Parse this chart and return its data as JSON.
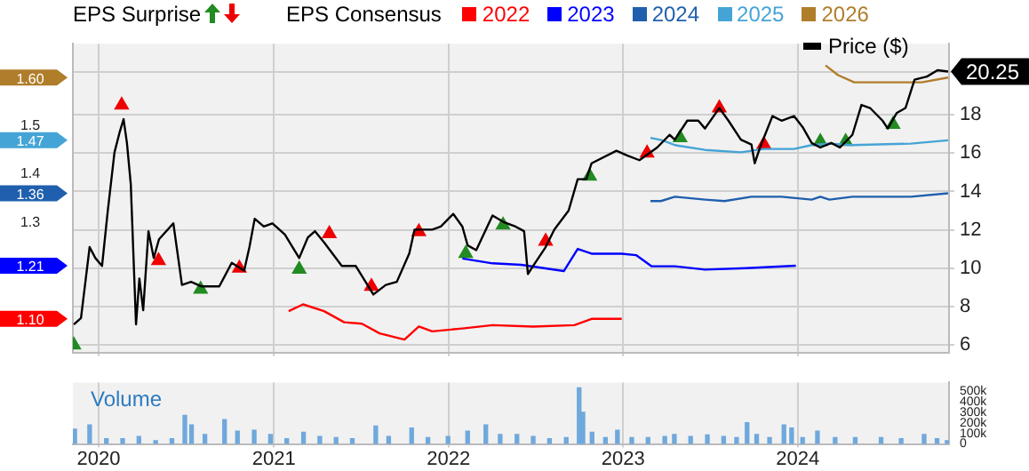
{
  "chart_data": [
    {
      "type": "line",
      "annotations": [
        "EPS Surprise"
      ],
      "legend_title": "EPS Consensus",
      "legend": "top",
      "grid": true,
      "tick_labels": "y",
      "marker": "none",
      "xlim": [
        "2019-11-08",
        "2024-11-12"
      ],
      "xticks": [
        "2020",
        "2021",
        "2022",
        "2023",
        "2024"
      ],
      "ylim": [
        5.6,
        21.7
      ],
      "yticks": [
        6,
        8,
        10,
        12,
        14,
        16,
        18,
        {
          "value": 20.25,
          "label": "20.25"
        }
      ],
      "y2lim": [
        1.03,
        1.67
      ],
      "y2ticks": [
        {
          "value": 1.1,
          "label": "1.10"
        },
        1.21,
        1.3,
        1.36,
        1.4,
        1.47,
        1.5,
        {
          "value": 1.6,
          "label": "1.60"
        }
      ],
      "series": [
        {
          "name": "Price ($)",
          "color": "#000000",
          "x": [
            "2019-11-10",
            "2019-11-25",
            "2019-12-13",
            "2019-12-25",
            "2020-01-08",
            "2020-01-20",
            "2020-02-03",
            "2020-02-14",
            "2020-02-22",
            "2020-02-29",
            "2020-03-08",
            "2020-03-19",
            "2020-03-26",
            "2020-04-03",
            "2020-04-14",
            "2020-04-25",
            "2020-05-06",
            "2020-06-05",
            "2020-06-23",
            "2020-07-12",
            "2020-08-03",
            "2020-09-09",
            "2020-10-05",
            "2020-10-31",
            "2020-11-11",
            "2020-11-22",
            "2020-12-11",
            "2020-12-29",
            "2021-01-24",
            "2021-02-23",
            "2021-03-13",
            "2021-03-28",
            "2021-04-16",
            "2021-05-23",
            "2021-06-21",
            "2021-07-28",
            "2021-08-23",
            "2021-09-15",
            "2021-10-11",
            "2021-10-22",
            "2021-11-28",
            "2021-12-16",
            "2022-01-11",
            "2022-01-30",
            "2022-02-10",
            "2022-02-28",
            "2022-04-03",
            "2022-04-25",
            "2022-05-21",
            "2022-06-08",
            "2022-06-16",
            "2022-06-27",
            "2022-07-23",
            "2022-08-10",
            "2022-09-09",
            "2022-09-28",
            "2022-10-16",
            "2022-10-27",
            "2022-12-18",
            "2023-01-09",
            "2023-02-04",
            "2023-03-13",
            "2023-04-08",
            "2023-04-19",
            "2023-05-15",
            "2023-06-07",
            "2023-06-21",
            "2023-07-21",
            "2023-08-09",
            "2023-09-04",
            "2023-09-26",
            "2023-10-03",
            "2023-10-14",
            "2023-11-09",
            "2023-11-28",
            "2023-12-24",
            "2024-01-11",
            "2024-01-30",
            "2024-02-17",
            "2024-03-11",
            "2024-03-29",
            "2024-04-24",
            "2024-05-13",
            "2024-05-31",
            "2024-06-26",
            "2024-07-07",
            "2024-07-26",
            "2024-08-13",
            "2024-09-01",
            "2024-09-27",
            "2024-10-19",
            "2024-11-10"
          ],
          "values": [
            7.07,
            7.4,
            11.1,
            10.53,
            10.12,
            13.0,
            16.04,
            17.11,
            17.77,
            16.53,
            14.4,
            7.07,
            9.46,
            7.81,
            11.93,
            10.53,
            11.51,
            12.34,
            9.13,
            9.29,
            9.05,
            9.05,
            10.28,
            9.87,
            11.1,
            12.58,
            12.17,
            12.34,
            11.76,
            10.53,
            11.6,
            11.93,
            11.35,
            10.12,
            10.12,
            8.63,
            9.13,
            9.29,
            10.77,
            12.01,
            12.01,
            12.17,
            12.83,
            12.17,
            11.19,
            10.94,
            12.75,
            12.42,
            12.17,
            11.93,
            9.7,
            10.12,
            11.1,
            12.01,
            13.0,
            14.64,
            14.64,
            15.47,
            16.12,
            15.88,
            15.63,
            16.29,
            16.95,
            16.7,
            17.69,
            17.69,
            17.28,
            18.35,
            17.69,
            16.7,
            16.45,
            15.47,
            16.29,
            17.93,
            17.69,
            17.93,
            17.36,
            16.53,
            16.29,
            16.53,
            16.29,
            16.95,
            18.51,
            18.35,
            17.69,
            17.28,
            18.1,
            18.35,
            19.83,
            19.99,
            20.32,
            20.25
          ]
        },
        {
          "name": "2022",
          "color": "#ff0000",
          "axis": "y2",
          "x": [
            "2021-02-01",
            "2021-03-03",
            "2021-04-16",
            "2021-05-28",
            "2021-07-04",
            "2021-08-10",
            "2021-10-01",
            "2021-10-31",
            "2021-11-28",
            "2022-01-30",
            "2022-04-03",
            "2022-06-27",
            "2022-09-21",
            "2022-10-27",
            "2022-12-29"
          ],
          "values": [
            1.116,
            1.13,
            1.116,
            1.093,
            1.09,
            1.07,
            1.057,
            1.084,
            1.074,
            1.08,
            1.087,
            1.084,
            1.087,
            1.1,
            1.1
          ]
        },
        {
          "name": "2023",
          "color": "#0000ff",
          "axis": "y2",
          "x": [
            "2022-01-30",
            "2022-04-03",
            "2022-06-02",
            "2022-08-30",
            "2022-09-28",
            "2022-10-27",
            "2022-12-29",
            "2023-01-28",
            "2023-03-01",
            "2023-04-19",
            "2023-06-21",
            "2023-09-15",
            "2023-12-28"
          ],
          "values": [
            1.225,
            1.215,
            1.212,
            1.199,
            1.245,
            1.235,
            1.235,
            1.232,
            1.209,
            1.209,
            1.202,
            1.205,
            1.21
          ]
        },
        {
          "name": "2024",
          "color": "#1f5fad",
          "axis": "y2",
          "x": [
            "2023-02-27",
            "2023-03-21",
            "2023-04-19",
            "2023-06-21",
            "2023-08-01",
            "2023-09-26",
            "2023-11-28",
            "2024-01-30",
            "2024-02-17",
            "2024-03-07",
            "2024-04-24",
            "2024-08-24",
            "2024-11-10"
          ],
          "values": [
            1.344,
            1.344,
            1.353,
            1.347,
            1.344,
            1.353,
            1.353,
            1.347,
            1.353,
            1.347,
            1.353,
            1.353,
            1.36
          ]
        },
        {
          "name": "2025",
          "color": "#45a4d6",
          "axis": "y2",
          "x": [
            "2023-02-27",
            "2023-03-24",
            "2023-04-19",
            "2023-06-21",
            "2023-09-04",
            "2023-10-22",
            "2023-12-24",
            "2024-01-30",
            "2024-03-07",
            "2024-04-24",
            "2024-08-24",
            "2024-11-10"
          ],
          "values": [
            1.475,
            1.47,
            1.46,
            1.45,
            1.445,
            1.452,
            1.452,
            1.46,
            1.463,
            1.46,
            1.463,
            1.47
          ]
        },
        {
          "name": "2026",
          "color": "#b07d2b",
          "axis": "y2",
          "x": [
            "2024-02-28",
            "2024-03-25",
            "2024-04-28",
            "2024-07-07",
            "2024-09-16",
            "2024-11-10"
          ],
          "values": [
            1.625,
            1.605,
            1.59,
            1.59,
            1.59,
            1.6
          ]
        },
        {
          "type": "scatter",
          "marker": "triangle",
          "color": "#228b22",
          "x": [
            "2019-11-10",
            "2020-08-01",
            "2021-02-23",
            "2022-02-06",
            "2022-04-25",
            "2022-10-23",
            "2023-04-30",
            "2024-02-17",
            "2024-04-10",
            "2024-07-18"
          ],
          "values": [
            6.0,
            8.9,
            9.95,
            10.77,
            12.25,
            14.8,
            16.8,
            16.6,
            16.6,
            17.5
          ]
        },
        {
          "type": "scatter",
          "marker": "triangle",
          "color": "#ee0000",
          "x": [
            "2020-02-18",
            "2020-05-05",
            "2020-10-21",
            "2021-04-27",
            "2021-07-24",
            "2021-10-31",
            "2022-07-23",
            "2023-02-20",
            "2023-07-21",
            "2023-10-22"
          ],
          "values": [
            18.5,
            10.4,
            10.0,
            11.8,
            9.05,
            11.9,
            11.4,
            16.0,
            18.35,
            16.45
          ]
        }
      ]
    },
    {
      "type": "bar",
      "ylabel": "Volume",
      "grid": "x",
      "xlim": [
        "2019-11-08",
        "2024-11-12"
      ],
      "xticks": [
        "2020",
        "2021",
        "2022",
        "2023",
        "2024"
      ],
      "ylim": [
        0,
        580000
      ],
      "yticks": [
        0,
        {
          "value": 100000,
          "label": "100k"
        },
        {
          "value": 200000,
          "label": "200k"
        },
        {
          "value": 300000,
          "label": "300k"
        },
        {
          "value": 400000,
          "label": "400k"
        },
        {
          "value": 500000,
          "label": "500k"
        }
      ],
      "color": "#6fa8dc",
      "x": [
        "2019-11-12",
        "2019-12-13",
        "2020-01-17",
        "2020-02-20",
        "2020-03-25",
        "2020-04-29",
        "2020-06-02",
        "2020-06-29",
        "2020-07-13",
        "2020-08-10",
        "2020-09-20",
        "2020-10-17",
        "2020-11-21",
        "2020-12-25",
        "2021-01-28",
        "2021-03-04",
        "2021-04-07",
        "2021-05-11",
        "2021-06-14",
        "2021-08-02",
        "2021-08-29",
        "2021-10-16",
        "2021-11-19",
        "2021-12-31",
        "2022-02-10",
        "2022-03-20",
        "2022-04-19",
        "2022-05-24",
        "2022-06-27",
        "2022-07-31",
        "2022-09-04",
        "2022-10-01",
        "2022-10-09",
        "2022-10-28",
        "2022-11-25",
        "2022-12-20",
        "2023-01-19",
        "2023-02-22",
        "2023-03-29",
        "2023-04-18",
        "2023-05-22",
        "2023-06-26",
        "2023-07-30",
        "2023-08-26",
        "2023-09-17",
        "2023-10-07",
        "2023-11-03",
        "2023-12-03",
        "2023-12-19",
        "2024-01-11",
        "2024-02-11",
        "2024-03-19",
        "2024-04-30",
        "2024-06-23",
        "2024-08-04",
        "2024-09-21",
        "2024-10-18",
        "2024-11-08"
      ],
      "values": [
        140000,
        180000,
        50000,
        50000,
        70000,
        30000,
        50000,
        270000,
        180000,
        90000,
        230000,
        120000,
        130000,
        90000,
        50000,
        110000,
        70000,
        60000,
        50000,
        170000,
        70000,
        150000,
        60000,
        70000,
        120000,
        180000,
        90000,
        90000,
        70000,
        50000,
        60000,
        530000,
        300000,
        110000,
        60000,
        130000,
        60000,
        60000,
        70000,
        90000,
        70000,
        85000,
        70000,
        60000,
        200000,
        90000,
        60000,
        180000,
        150000,
        60000,
        120000,
        60000,
        60000,
        60000,
        50000,
        90000,
        50000,
        30000
      ]
    }
  ]
}
